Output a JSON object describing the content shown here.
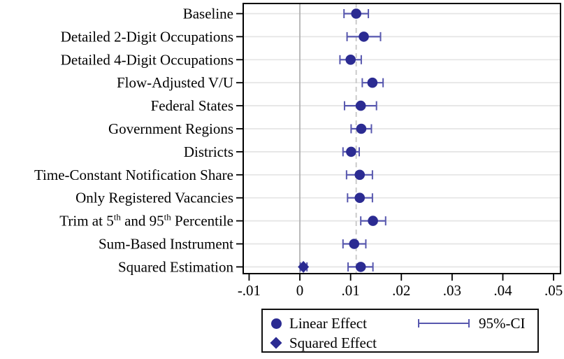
{
  "chart_data": {
    "type": "scatter",
    "subtype": "forest-coefficient-plot",
    "title": "",
    "xlabel": "",
    "ylabel": "",
    "categories": [
      "Baseline",
      "Detailed 2-Digit Occupations",
      "Detailed 4-Digit Occupations",
      "Flow-Adjusted V/U",
      "Federal States",
      "Government Regions",
      "Districts",
      "Time-Constant Notification Share",
      "Only Registered Vacancies",
      "Trim at 5^{th} and 95^{th} Percentile",
      "Sum-Based Instrument",
      "Squared Estimation"
    ],
    "series": [
      {
        "name": "Linear Effect",
        "marker": "circle",
        "points": [
          {
            "category": "Baseline",
            "value": 0.0111,
            "ci_low": 0.0087,
            "ci_high": 0.0135
          },
          {
            "category": "Detailed 2-Digit Occupations",
            "value": 0.0126,
            "ci_low": 0.0093,
            "ci_high": 0.0159
          },
          {
            "category": "Detailed 4-Digit Occupations",
            "value": 0.01,
            "ci_low": 0.0079,
            "ci_high": 0.0121
          },
          {
            "category": "Flow-Adjusted V/U",
            "value": 0.0143,
            "ci_low": 0.0123,
            "ci_high": 0.0164
          },
          {
            "category": "Federal States",
            "value": 0.012,
            "ci_low": 0.0088,
            "ci_high": 0.0151
          },
          {
            "category": "Government Regions",
            "value": 0.0121,
            "ci_low": 0.0101,
            "ci_high": 0.0141
          },
          {
            "category": "Districts",
            "value": 0.0101,
            "ci_low": 0.0085,
            "ci_high": 0.0117
          },
          {
            "category": "Time-Constant Notification Share",
            "value": 0.0118,
            "ci_low": 0.0092,
            "ci_high": 0.0143
          },
          {
            "category": "Only Registered Vacancies",
            "value": 0.0118,
            "ci_low": 0.0094,
            "ci_high": 0.0143
          },
          {
            "category": "Trim at 5^{th} and 95^{th} Percentile",
            "value": 0.0144,
            "ci_low": 0.012,
            "ci_high": 0.0169
          },
          {
            "category": "Sum-Based Instrument",
            "value": 0.0107,
            "ci_low": 0.0085,
            "ci_high": 0.013
          },
          {
            "category": "Squared Estimation",
            "value": 0.012,
            "ci_low": 0.0095,
            "ci_high": 0.0144
          }
        ]
      },
      {
        "name": "Squared Effect",
        "marker": "diamond",
        "points": [
          {
            "category": "Squared Estimation",
            "value": 0.0007,
            "ci_low": 0.0001,
            "ci_high": 0.0014
          }
        ]
      }
    ],
    "xticks": {
      "values": [
        -0.01,
        0,
        0.01,
        0.02,
        0.03,
        0.04,
        0.05
      ],
      "labels": [
        "-.01",
        "0",
        ".01",
        ".02",
        ".03",
        ".04",
        ".05"
      ]
    },
    "xlim": [
      -0.0113,
      0.0515
    ],
    "ref_lines": [
      {
        "value": 0,
        "style": "solid"
      },
      {
        "value": 0.0111,
        "style": "dashed"
      }
    ],
    "grid": "horizontal-category-gridlines",
    "legend_position": "bottom",
    "colors": {
      "marker": "#2b2b92",
      "ci_line": "#5757ae",
      "gridline": "#e4e4e4",
      "zero_line": "#b2b2b2",
      "dashed_line": "#c6c6c6",
      "axis": "#000000",
      "text": "#000000"
    }
  },
  "legend": {
    "items": [
      {
        "label": "Linear Effect",
        "marker": "circle"
      },
      {
        "label": "Squared Effect",
        "marker": "diamond"
      },
      {
        "label": "95%-CI",
        "marker": "errorbar"
      }
    ]
  }
}
